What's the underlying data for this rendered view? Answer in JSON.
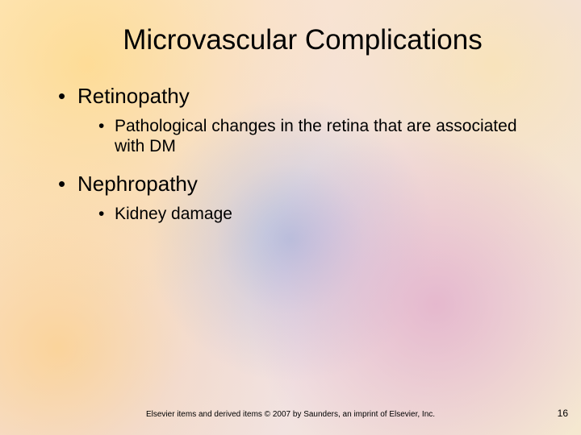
{
  "title": "Microvascular Complications",
  "bullets": [
    {
      "label": "Retinopathy",
      "sub": "Pathological changes in the retina that are associated with DM"
    },
    {
      "label": "Nephropathy",
      "sub": "Kidney damage"
    }
  ],
  "footer": "Elsevier items and derived items © 2007 by Saunders, an imprint of Elsevier, Inc.",
  "page_number": "16",
  "colors": {
    "text": "#000000",
    "bg_warm": "#fde9c8",
    "bg_pink": "#e1aac8",
    "bg_blue": "#6e96d2"
  },
  "fonts": {
    "title_size_pt": 35,
    "level1_size_pt": 26,
    "level2_size_pt": 21,
    "footer_size_pt": 10
  }
}
